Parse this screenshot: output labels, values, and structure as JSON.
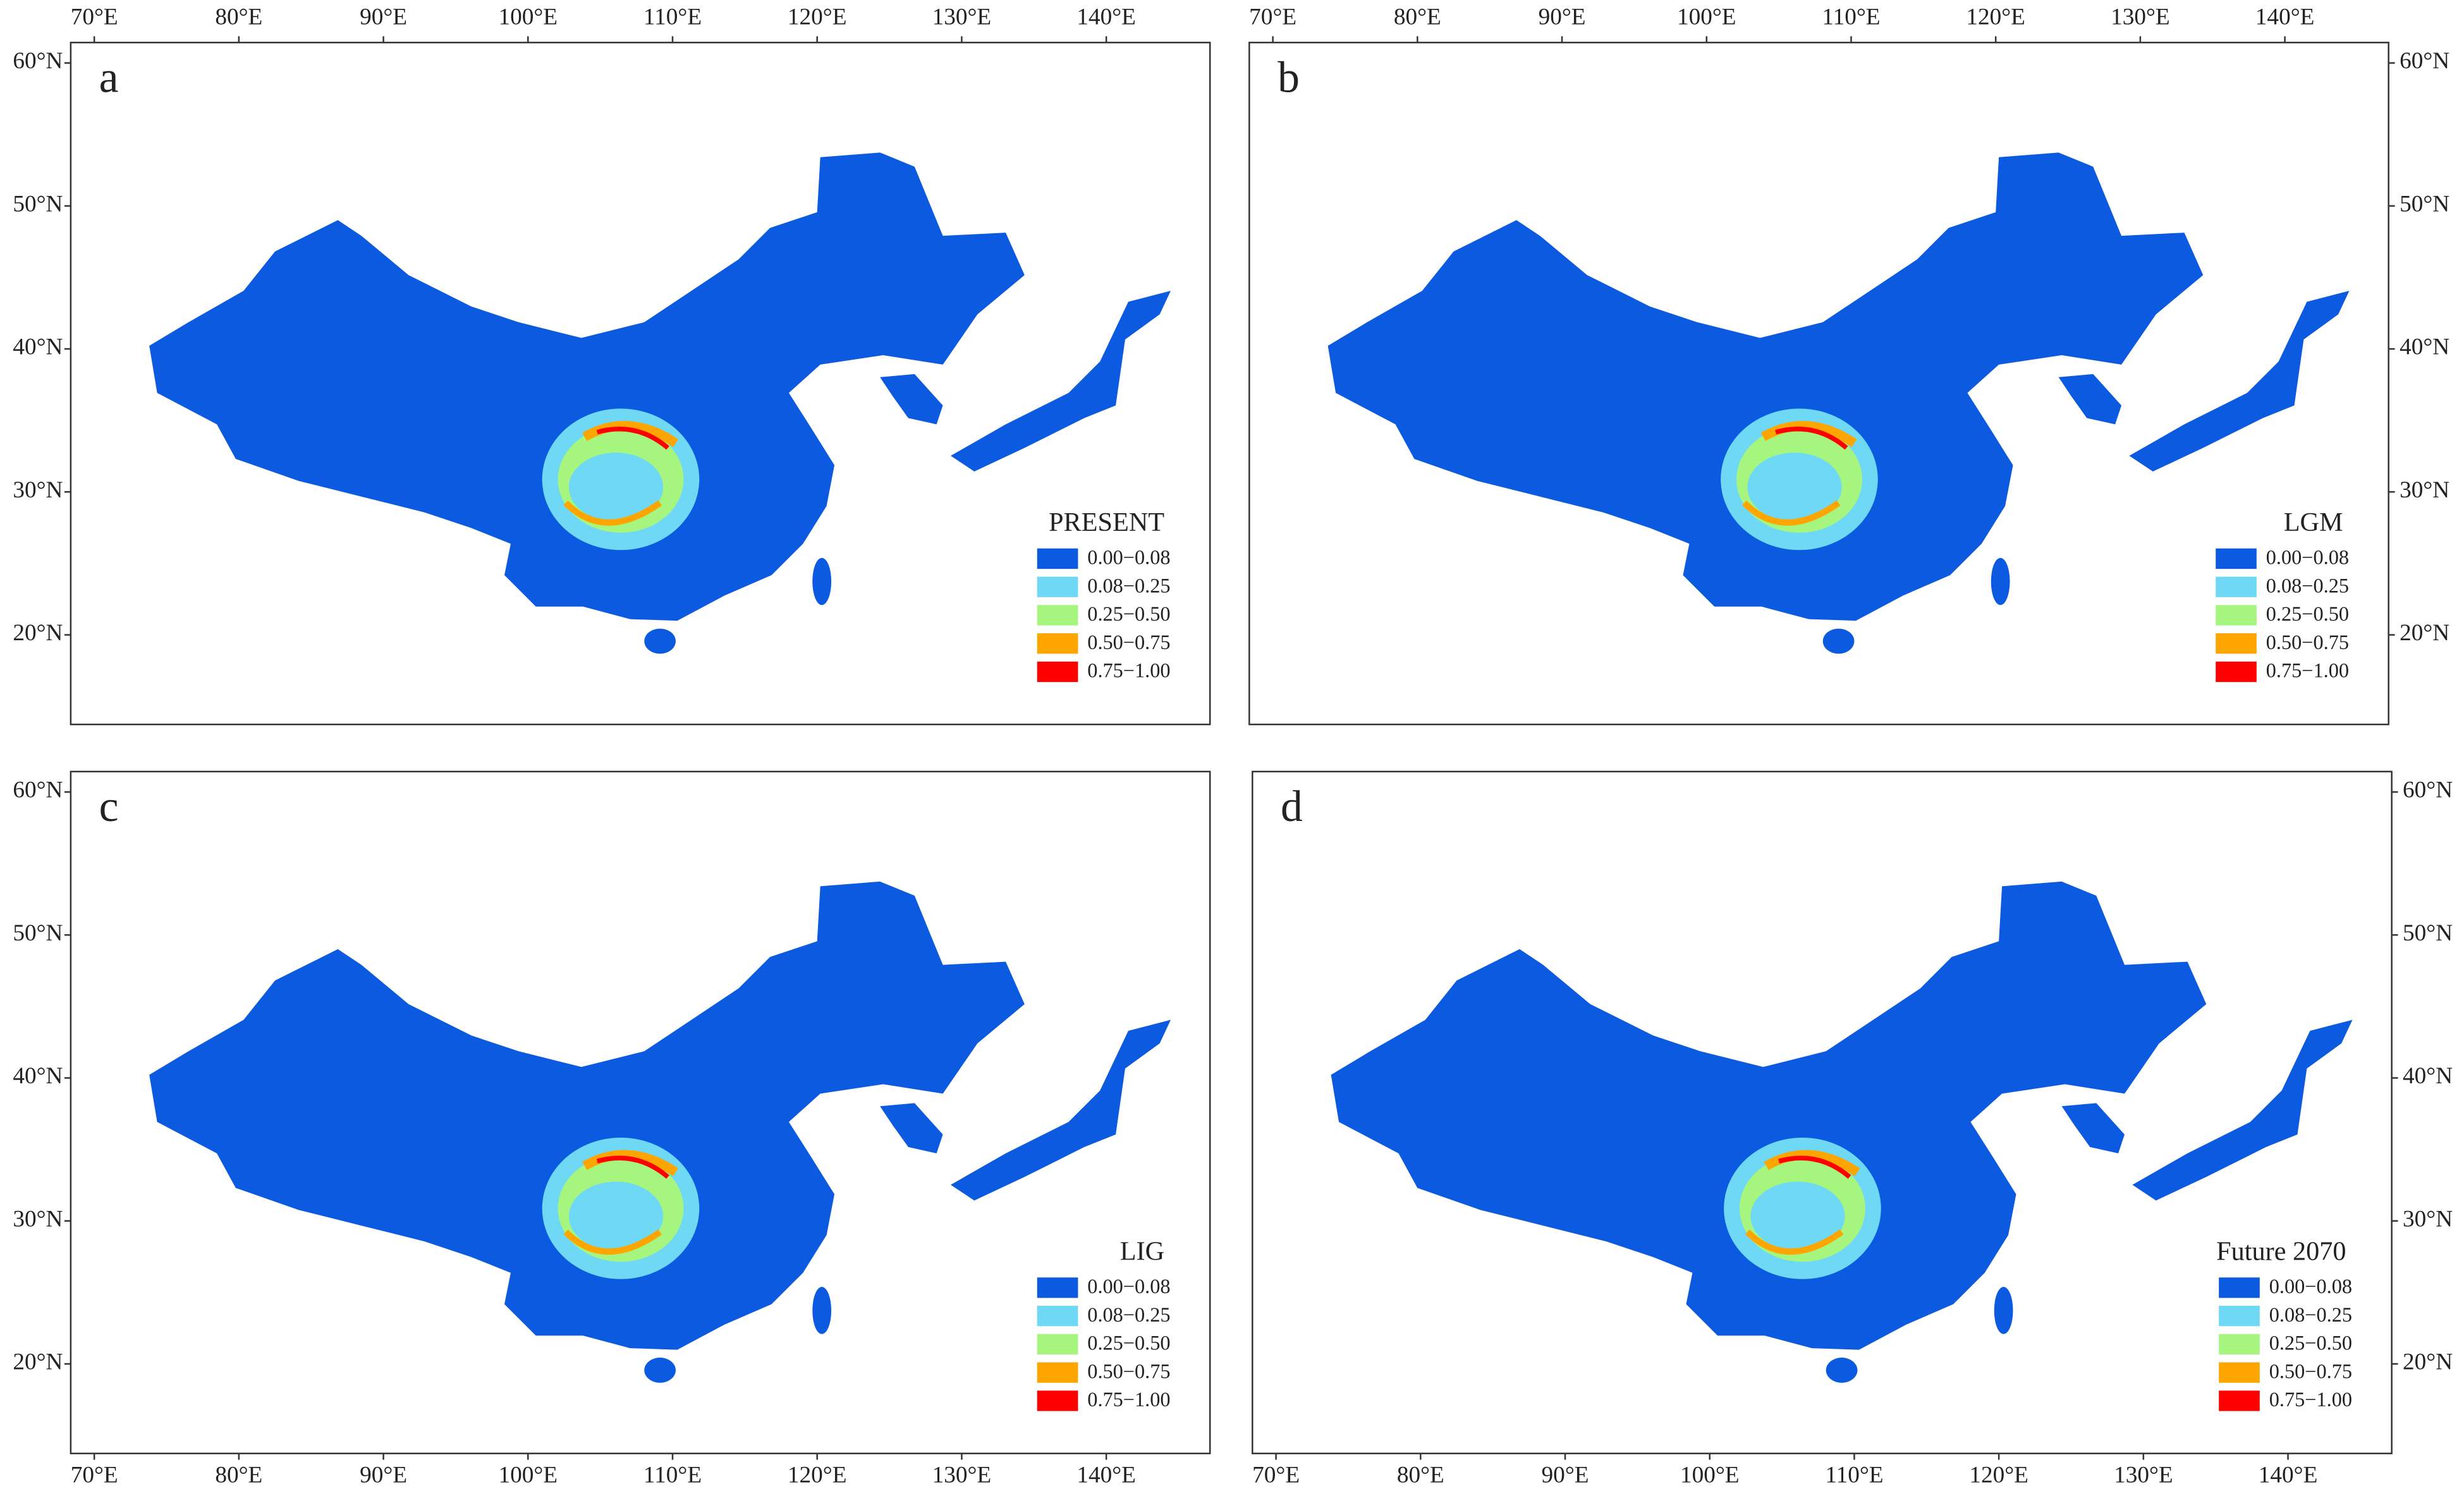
{
  "panels": [
    {
      "letter": "a",
      "title": "PRESENT"
    },
    {
      "letter": "b",
      "title": "LGM"
    },
    {
      "letter": "c",
      "title": "LIG"
    },
    {
      "letter": "d",
      "title": "Future 2070"
    }
  ],
  "legend": [
    {
      "label": "0.00−0.08",
      "color": "#0b5ae0"
    },
    {
      "label": "0.08−0.25",
      "color": "#6fd8f5"
    },
    {
      "label": "0.25−0.50",
      "color": "#a6f57e"
    },
    {
      "label": "0.50−0.75",
      "color": "#ffa500"
    },
    {
      "label": "0.75−1.00",
      "color": "#ff0000"
    }
  ],
  "lon_ticks": [
    {
      "value": 70,
      "label": "70°E"
    },
    {
      "value": 80,
      "label": "80°E"
    },
    {
      "value": 90,
      "label": "90°E"
    },
    {
      "value": 100,
      "label": "100°E"
    },
    {
      "value": 110,
      "label": "110°E"
    },
    {
      "value": 120,
      "label": "120°E"
    },
    {
      "value": 130,
      "label": "130°E"
    },
    {
      "value": 140,
      "label": "140°E"
    }
  ],
  "lat_ticks": [
    {
      "value": 60,
      "label": "60°N"
    },
    {
      "value": 50,
      "label": "50°N"
    },
    {
      "value": 40,
      "label": "40°N"
    },
    {
      "value": 30,
      "label": "30°N"
    },
    {
      "value": 20,
      "label": "20°N"
    }
  ]
}
